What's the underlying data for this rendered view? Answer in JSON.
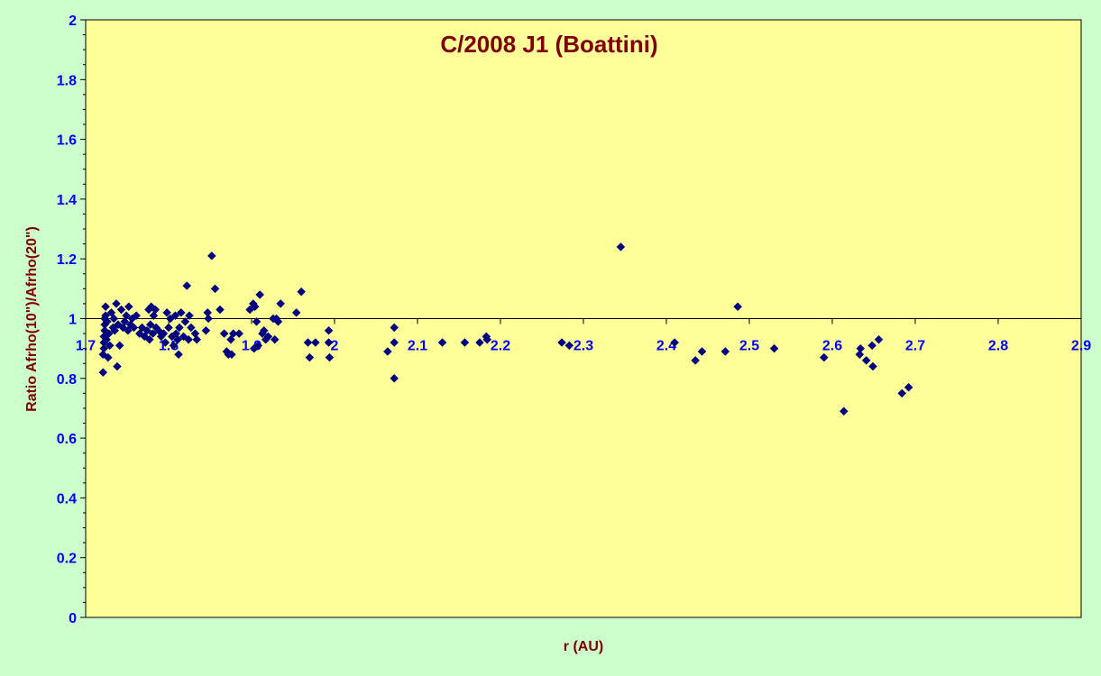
{
  "chart_data": {
    "type": "scatter",
    "title": "C/2008 J1 (Boattini)",
    "xlabel": "r (AU)",
    "ylabel": "Ratio Afrho(10\")/Afrho(20\")",
    "xlim": [
      1.7,
      2.9
    ],
    "ylim": [
      0,
      2
    ],
    "x_ticks": [
      "1.7",
      "1.8",
      "1.9",
      "2",
      "2.1",
      "2.2",
      "2.3",
      "2.4",
      "2.5",
      "2.6",
      "2.7",
      "2.8",
      "2.9"
    ],
    "y_ticks": [
      "0",
      "0.2",
      "0.4",
      "0.6",
      "0.8",
      "1",
      "1.2",
      "1.4",
      "1.6",
      "1.8",
      "2"
    ],
    "x_axis_crosses_y": 1,
    "grid": false,
    "legend": "none",
    "colors": {
      "plot_bg": "#ffff99",
      "page_bg": "#ccffcc",
      "marker": "#000080"
    },
    "series": [
      {
        "marker": "diamond",
        "points": [
          [
            1.721,
            0.82
          ],
          [
            1.721,
            0.88
          ],
          [
            1.722,
            0.9
          ],
          [
            1.722,
            0.92
          ],
          [
            1.722,
            0.94
          ],
          [
            1.723,
            0.96
          ],
          [
            1.723,
            0.98
          ],
          [
            1.723,
            1.0
          ],
          [
            1.724,
            1.01
          ],
          [
            1.724,
            1.04
          ],
          [
            1.725,
            0.93
          ],
          [
            1.726,
            0.99
          ],
          [
            1.727,
            0.87
          ],
          [
            1.728,
            0.95
          ],
          [
            1.729,
            0.91
          ],
          [
            1.731,
            1.02
          ],
          [
            1.733,
            0.97
          ],
          [
            1.734,
            1.0
          ],
          [
            1.735,
            0.96
          ],
          [
            1.737,
            1.05
          ],
          [
            1.738,
            0.84
          ],
          [
            1.739,
            0.98
          ],
          [
            1.741,
            0.91
          ],
          [
            1.743,
            1.03
          ],
          [
            1.745,
            0.97
          ],
          [
            1.747,
            0.99
          ],
          [
            1.749,
            1.01
          ],
          [
            1.751,
            0.96
          ],
          [
            1.752,
            1.04
          ],
          [
            1.754,
            0.98
          ],
          [
            1.756,
            1.0
          ],
          [
            1.758,
            0.97
          ],
          [
            1.761,
            1.01
          ],
          [
            1.765,
            0.95
          ],
          [
            1.768,
            0.97
          ],
          [
            1.771,
            0.94
          ],
          [
            1.774,
            0.96
          ],
          [
            1.776,
            1.03
          ],
          [
            1.777,
            0.93
          ],
          [
            1.778,
            0.98
          ],
          [
            1.779,
            1.04
          ],
          [
            1.781,
            0.95
          ],
          [
            1.782,
            1.01
          ],
          [
            1.784,
            1.03
          ],
          [
            1.785,
            0.97
          ],
          [
            1.788,
            0.96
          ],
          [
            1.791,
            0.94
          ],
          [
            1.794,
            0.95
          ],
          [
            1.796,
            0.92
          ],
          [
            1.798,
            1.02
          ],
          [
            1.8,
            0.97
          ],
          [
            1.802,
            1.0
          ],
          [
            1.804,
            0.94
          ],
          [
            1.806,
            0.91
          ],
          [
            1.808,
            1.01
          ],
          [
            1.809,
            0.95
          ],
          [
            1.811,
            0.93
          ],
          [
            1.812,
            0.88
          ],
          [
            1.813,
            0.97
          ],
          [
            1.815,
            1.02
          ],
          [
            1.818,
            0.94
          ],
          [
            1.82,
            0.99
          ],
          [
            1.822,
            1.11
          ],
          [
            1.824,
            0.93
          ],
          [
            1.825,
            1.01
          ],
          [
            1.827,
            0.97
          ],
          [
            1.832,
            0.95
          ],
          [
            1.834,
            0.93
          ],
          [
            1.845,
            0.96
          ],
          [
            1.847,
            1.02
          ],
          [
            1.848,
            1.0
          ],
          [
            1.852,
            1.21
          ],
          [
            1.856,
            1.1
          ],
          [
            1.862,
            1.03
          ],
          [
            1.867,
            0.95
          ],
          [
            1.87,
            0.89
          ],
          [
            1.872,
            0.88
          ],
          [
            1.875,
            0.93
          ],
          [
            1.876,
            0.88
          ],
          [
            1.878,
            0.95
          ],
          [
            1.885,
            0.95
          ],
          [
            1.898,
            1.03
          ],
          [
            1.902,
            1.05
          ],
          [
            1.903,
            0.9
          ],
          [
            1.904,
            1.04
          ],
          [
            1.906,
            0.99
          ],
          [
            1.908,
            0.91
          ],
          [
            1.91,
            1.08
          ],
          [
            1.913,
            0.95
          ],
          [
            1.915,
            0.96
          ],
          [
            1.917,
            0.93
          ],
          [
            1.92,
            0.94
          ],
          [
            1.926,
            1.0
          ],
          [
            1.928,
            0.93
          ],
          [
            1.93,
            1.0
          ],
          [
            1.932,
            0.99
          ],
          [
            1.935,
            1.05
          ],
          [
            1.954,
            1.02
          ],
          [
            1.96,
            1.09
          ],
          [
            1.968,
            0.92
          ],
          [
            1.97,
            0.87
          ],
          [
            1.977,
            0.92
          ],
          [
            1.993,
            0.96
          ],
          [
            1.993,
            0.92
          ],
          [
            1.994,
            0.87
          ],
          [
            2.064,
            0.89
          ],
          [
            2.072,
            0.92
          ],
          [
            2.072,
            0.97
          ],
          [
            2.072,
            0.8
          ],
          [
            2.13,
            0.92
          ],
          [
            2.157,
            0.92
          ],
          [
            2.175,
            0.92
          ],
          [
            2.183,
            0.94
          ],
          [
            2.184,
            0.93
          ],
          [
            2.274,
            0.92
          ],
          [
            2.283,
            0.91
          ],
          [
            2.345,
            1.24
          ],
          [
            2.41,
            0.92
          ],
          [
            2.435,
            0.86
          ],
          [
            2.443,
            0.89
          ],
          [
            2.471,
            0.89
          ],
          [
            2.486,
            1.04
          ],
          [
            2.53,
            0.9
          ],
          [
            2.59,
            0.87
          ],
          [
            2.614,
            0.69
          ],
          [
            2.633,
            0.88
          ],
          [
            2.634,
            0.9
          ],
          [
            2.641,
            0.86
          ],
          [
            2.648,
            0.91
          ],
          [
            2.649,
            0.84
          ],
          [
            2.656,
            0.93
          ],
          [
            2.684,
            0.75
          ],
          [
            2.692,
            0.77
          ]
        ]
      }
    ]
  }
}
